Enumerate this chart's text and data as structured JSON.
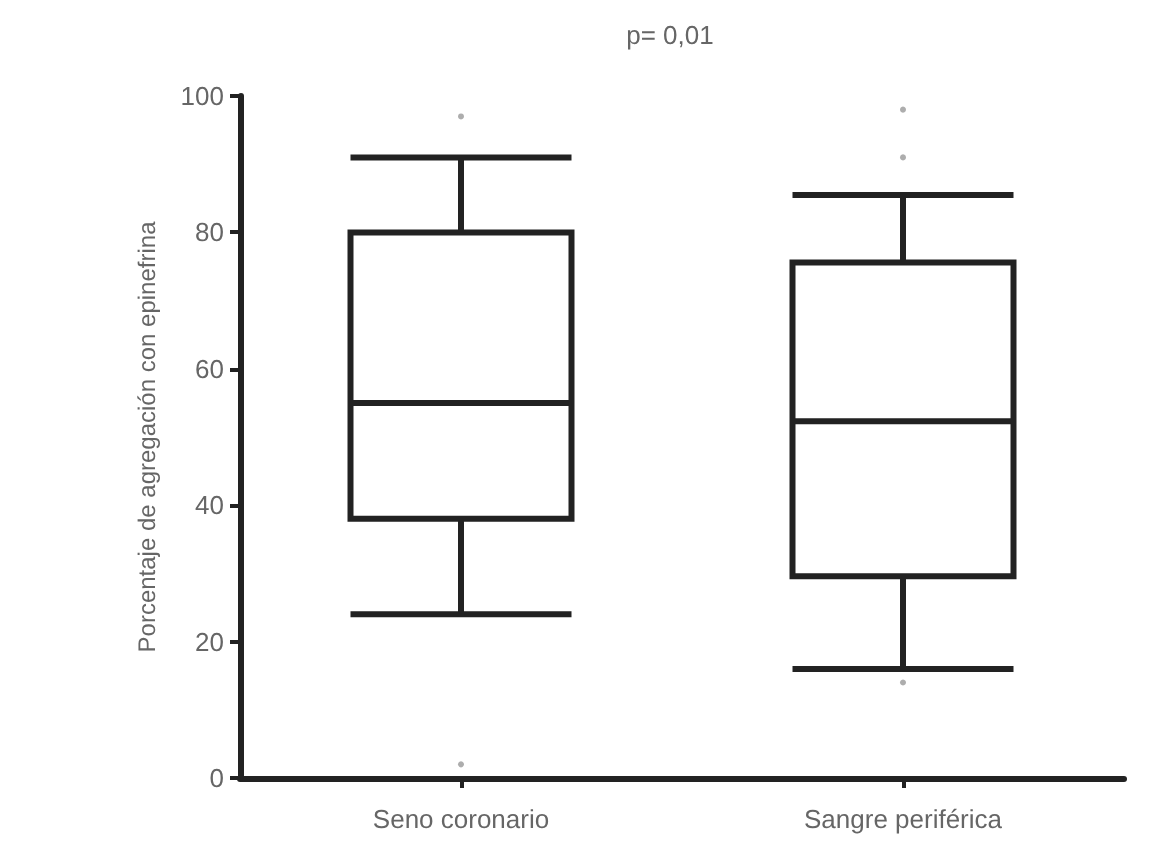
{
  "chart_data": {
    "type": "box",
    "title": "p= 0,01",
    "ylabel": "Porcentaje de agregación con epinefrina",
    "categories": [
      "Seno coronario",
      "Sangre periférica"
    ],
    "boxes": [
      {
        "low": 24,
        "q1": 38,
        "median": 55,
        "q3": 80,
        "high": 91,
        "outliers": [
          97,
          2
        ]
      },
      {
        "low": 16,
        "q1": 29.6,
        "median": 52.3,
        "q3": 75.6,
        "high": 85.5,
        "outliers": [
          98,
          91,
          14
        ]
      }
    ],
    "color": "#222222",
    "ylim": [
      0,
      100
    ],
    "yticks": [
      0,
      20,
      40,
      60,
      80,
      100
    ],
    "grid": false
  }
}
